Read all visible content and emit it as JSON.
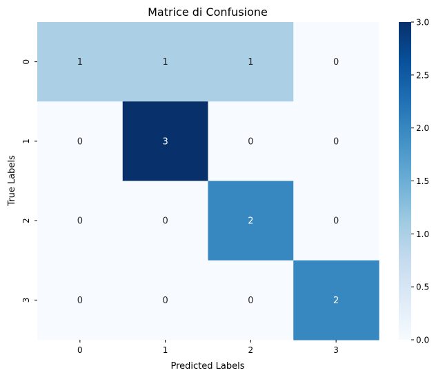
{
  "chart_data": {
    "type": "heatmap",
    "title": "Matrice di Confusione",
    "xlabel": "Predicted Labels",
    "ylabel": "True Labels",
    "x_categories": [
      "0",
      "1",
      "2",
      "3"
    ],
    "y_categories": [
      "0",
      "1",
      "2",
      "3"
    ],
    "values": [
      [
        1,
        1,
        1,
        0
      ],
      [
        0,
        3,
        0,
        0
      ],
      [
        0,
        0,
        2,
        0
      ],
      [
        0,
        0,
        0,
        2
      ]
    ],
    "colorbar": {
      "min": 0,
      "max": 3,
      "ticks": [
        "0.0",
        "0.5",
        "1.0",
        "1.5",
        "2.0",
        "2.5",
        "3.0"
      ]
    },
    "colormap": "Blues",
    "colors": {
      "low": "#f7fbff",
      "mid": "#6baed6",
      "high": "#08306b",
      "text_dark": "#262626",
      "text_light": "#ffffff"
    }
  }
}
